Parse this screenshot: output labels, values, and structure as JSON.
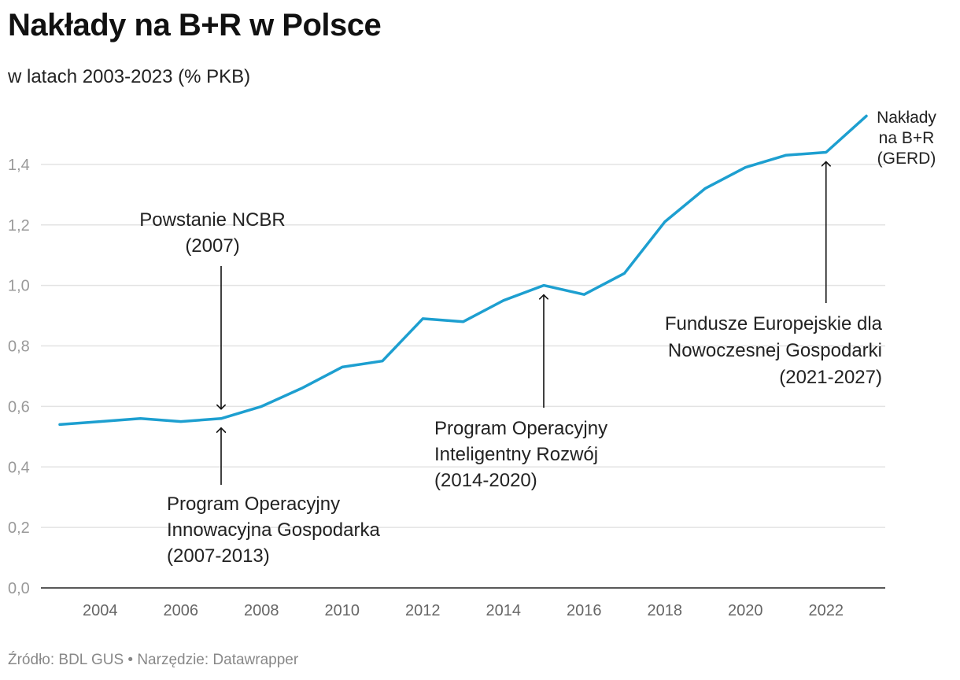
{
  "chart_data": {
    "type": "line",
    "title": "Nakłady na B+R w Polsce",
    "subtitle": "w latach 2003-2023 (% PKB)",
    "ylim": [
      0,
      1.6
    ],
    "xlim": [
      2003,
      2023
    ],
    "y_ticks": [
      {
        "v": 0,
        "label": "0,0"
      },
      {
        "v": 0.2,
        "label": "0,2"
      },
      {
        "v": 0.4,
        "label": "0,4"
      },
      {
        "v": 0.6,
        "label": "0,6"
      },
      {
        "v": 0.8,
        "label": "0,8"
      },
      {
        "v": 1.0,
        "label": "1,0"
      },
      {
        "v": 1.2,
        "label": "1,2"
      },
      {
        "v": 1.4,
        "label": "1,4"
      }
    ],
    "x_ticks": [
      2004,
      2006,
      2008,
      2010,
      2012,
      2014,
      2016,
      2018,
      2020,
      2022
    ],
    "series": [
      {
        "name": "Nakłady na B+R (GERD)",
        "label_lines": [
          "Nakłady",
          "na B+R",
          "(GERD)"
        ],
        "color": "#1d9fd0",
        "x": [
          2003,
          2004,
          2005,
          2006,
          2007,
          2008,
          2009,
          2010,
          2011,
          2012,
          2013,
          2014,
          2015,
          2016,
          2017,
          2018,
          2019,
          2020,
          2021,
          2022,
          2023
        ],
        "values": [
          0.54,
          0.55,
          0.56,
          0.55,
          0.56,
          0.6,
          0.66,
          0.73,
          0.75,
          0.89,
          0.88,
          0.95,
          1.0,
          0.97,
          1.04,
          1.21,
          1.32,
          1.39,
          1.43,
          1.44,
          1.56
        ]
      }
    ],
    "annotations": [
      {
        "name": "annotation-ncbr",
        "lines": [
          "Powstanie NCBR",
          "(2007)"
        ],
        "x": 2007,
        "direction": "down",
        "align": "middle"
      },
      {
        "name": "annotation-poig",
        "lines": [
          "Program Operacyjny",
          "Innowacyjna Gospodarka",
          "(2007-2013)"
        ],
        "x": 2007,
        "direction": "up",
        "align": "start"
      },
      {
        "name": "annotation-poir",
        "lines": [
          "Program Operacyjny",
          "Inteligentny Rozwój",
          "(2014-2020)"
        ],
        "x": 2015,
        "direction": "up",
        "align": "start"
      },
      {
        "name": "annotation-fengo",
        "lines": [
          "Fundusze Europejskie  dla",
          "Nowoczesnej Gospodarki",
          "(2021-2027)"
        ],
        "x": 2022,
        "direction": "up",
        "align": "end"
      }
    ]
  },
  "footer": {
    "text": "Źródło: BDL GUS • Narzędzie: Datawrapper"
  }
}
